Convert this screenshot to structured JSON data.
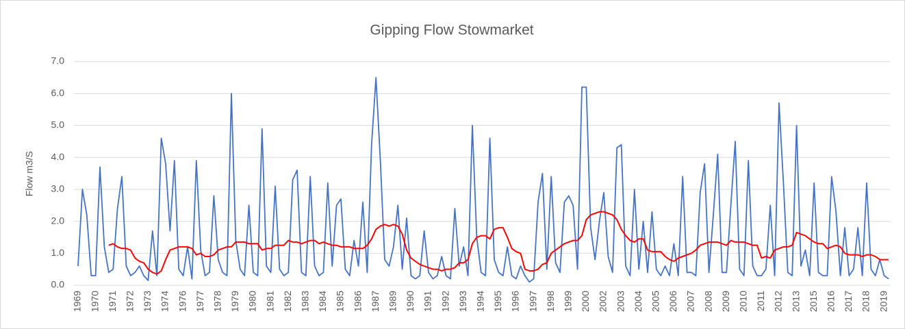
{
  "chart_data": {
    "type": "line",
    "title": "Gipping Flow Stowmarket",
    "y_label": "Flow m3/S",
    "categories": [
      "1969",
      null,
      null,
      null,
      "1970",
      null,
      null,
      null,
      "1971",
      null,
      null,
      null,
      "1972",
      null,
      null,
      null,
      "1973",
      null,
      null,
      null,
      "1974",
      null,
      null,
      null,
      "1976",
      null,
      null,
      null,
      "1977",
      null,
      null,
      null,
      "1978",
      null,
      null,
      null,
      "1979",
      null,
      null,
      null,
      "1980",
      null,
      null,
      null,
      "1981",
      null,
      null,
      null,
      "1982",
      null,
      null,
      null,
      "1983",
      null,
      null,
      null,
      "1984",
      null,
      null,
      null,
      "1985",
      null,
      null,
      null,
      "1986",
      null,
      null,
      null,
      "1987",
      null,
      null,
      null,
      "1989",
      null,
      null,
      null,
      "1990",
      null,
      null,
      null,
      "1991",
      null,
      null,
      null,
      "1992",
      null,
      null,
      null,
      "1993",
      null,
      null,
      null,
      "1994",
      null,
      null,
      null,
      "1995",
      null,
      null,
      null,
      "1996",
      null,
      null,
      null,
      "1997",
      null,
      null,
      null,
      "1998",
      null,
      null,
      null,
      "1999",
      null,
      null,
      null,
      "2000",
      null,
      null,
      null,
      "2002",
      null,
      null,
      null,
      "2003",
      null,
      null,
      null,
      "2004",
      null,
      null,
      null,
      "2005",
      null,
      null,
      null,
      "2006",
      null,
      null,
      null,
      "2007",
      null,
      null,
      null,
      "2008",
      null,
      null,
      null,
      "2009",
      null,
      null,
      null,
      "2010",
      null,
      null,
      null,
      "2011",
      null,
      null,
      null,
      "2012",
      null,
      null,
      null,
      "2013",
      null,
      null,
      null,
      "2015",
      null,
      null,
      null,
      "2016",
      null,
      null,
      null,
      "2017",
      null,
      null,
      null,
      "2018",
      null,
      null,
      null,
      "2019",
      null
    ],
    "series": [
      {
        "color": "#4472c4",
        "values": [
          0.6,
          3.0,
          2.2,
          0.3,
          0.3,
          3.7,
          1.2,
          0.4,
          0.5,
          2.4,
          3.4,
          0.6,
          0.3,
          0.4,
          0.6,
          0.3,
          0.15,
          1.7,
          0.3,
          4.6,
          3.8,
          1.7,
          3.9,
          0.5,
          0.3,
          1.2,
          0.2,
          3.9,
          1.1,
          0.3,
          0.4,
          2.8,
          0.8,
          0.4,
          0.3,
          6.0,
          1.4,
          0.5,
          0.3,
          2.5,
          0.4,
          0.3,
          4.9,
          0.6,
          0.4,
          3.1,
          0.5,
          0.3,
          0.4,
          3.3,
          3.6,
          0.4,
          0.3,
          3.4,
          0.6,
          0.3,
          0.4,
          3.2,
          0.6,
          2.5,
          2.7,
          0.5,
          0.3,
          1.4,
          0.6,
          2.6,
          0.4,
          4.4,
          6.5,
          3.9,
          0.8,
          0.6,
          1.2,
          2.5,
          0.5,
          2.1,
          0.3,
          0.2,
          0.3,
          1.7,
          0.4,
          0.2,
          0.3,
          0.9,
          0.3,
          0.2,
          2.4,
          0.6,
          1.2,
          0.3,
          5.0,
          1.5,
          0.4,
          0.3,
          4.6,
          0.8,
          0.4,
          0.3,
          1.2,
          0.3,
          0.2,
          0.6,
          0.3,
          0.1,
          0.2,
          2.6,
          3.5,
          0.5,
          3.4,
          0.7,
          0.4,
          2.6,
          2.8,
          2.5,
          0.5,
          6.2,
          6.2,
          1.8,
          0.8,
          2.0,
          2.9,
          0.9,
          0.4,
          4.3,
          4.4,
          0.6,
          0.3,
          3.0,
          0.5,
          2.0,
          0.4,
          2.3,
          0.5,
          0.3,
          0.6,
          0.3,
          1.3,
          0.3,
          3.4,
          0.4,
          0.4,
          0.3,
          2.9,
          3.8,
          0.4,
          2.2,
          4.1,
          0.4,
          0.4,
          2.5,
          4.5,
          0.5,
          0.3,
          3.9,
          0.6,
          0.3,
          0.3,
          0.5,
          2.5,
          0.3,
          5.7,
          3.2,
          0.4,
          0.3,
          5.0,
          0.6,
          1.1,
          0.3,
          3.2,
          0.4,
          0.3,
          0.3,
          3.4,
          2.3,
          0.3,
          1.8,
          0.3,
          0.5,
          1.8,
          0.3,
          3.2,
          0.5,
          0.3,
          0.8,
          0.3,
          0.2
        ]
      },
      {
        "color": "#ff0000",
        "values": [
          null,
          null,
          null,
          null,
          null,
          null,
          null,
          1.25,
          1.3,
          1.2,
          1.15,
          1.15,
          1.1,
          0.85,
          0.75,
          0.7,
          0.5,
          0.4,
          0.35,
          0.45,
          0.8,
          1.1,
          1.15,
          1.2,
          1.2,
          1.2,
          1.15,
          0.95,
          1.0,
          0.9,
          0.9,
          0.95,
          1.1,
          1.15,
          1.2,
          1.2,
          1.35,
          1.35,
          1.35,
          1.3,
          1.3,
          1.3,
          1.1,
          1.15,
          1.15,
          1.25,
          1.25,
          1.25,
          1.4,
          1.35,
          1.35,
          1.3,
          1.35,
          1.4,
          1.4,
          1.3,
          1.35,
          1.3,
          1.25,
          1.25,
          1.2,
          1.2,
          1.2,
          1.15,
          1.15,
          1.15,
          1.25,
          1.45,
          1.75,
          1.85,
          1.9,
          1.85,
          1.9,
          1.85,
          1.6,
          1.1,
          0.85,
          0.75,
          0.65,
          0.6,
          0.55,
          0.5,
          0.5,
          0.45,
          0.5,
          0.5,
          0.55,
          0.7,
          0.7,
          0.8,
          1.3,
          1.5,
          1.55,
          1.55,
          1.45,
          1.75,
          1.8,
          1.8,
          1.5,
          1.15,
          1.05,
          1.0,
          0.5,
          0.45,
          0.45,
          0.5,
          0.65,
          0.7,
          1.0,
          1.1,
          1.2,
          1.3,
          1.35,
          1.4,
          1.4,
          1.55,
          2.05,
          2.2,
          2.25,
          2.3,
          2.3,
          2.25,
          2.2,
          2.05,
          1.75,
          1.55,
          1.4,
          1.35,
          1.45,
          1.45,
          1.1,
          1.05,
          1.05,
          1.05,
          0.9,
          0.8,
          0.75,
          0.85,
          0.9,
          0.95,
          1.0,
          1.1,
          1.25,
          1.3,
          1.35,
          1.35,
          1.35,
          1.3,
          1.25,
          1.4,
          1.35,
          1.35,
          1.35,
          1.3,
          1.25,
          1.25,
          0.85,
          0.9,
          0.85,
          1.1,
          1.15,
          1.2,
          1.2,
          1.25,
          1.65,
          1.6,
          1.55,
          1.45,
          1.35,
          1.3,
          1.3,
          1.15,
          1.2,
          1.25,
          1.2,
          1.0,
          0.95,
          0.95,
          0.95,
          0.9,
          0.95,
          0.95,
          0.9,
          0.8,
          0.8,
          0.8
        ]
      }
    ],
    "ylim": [
      0,
      7
    ],
    "yticks": [
      {
        "value": 0,
        "label": "0.0"
      },
      {
        "value": 1,
        "label": "1.0"
      },
      {
        "value": 2,
        "label": "2.0"
      },
      {
        "value": 3,
        "label": "3.0"
      },
      {
        "value": 4,
        "label": "4.0"
      },
      {
        "value": 5,
        "label": "5.0"
      },
      {
        "value": 6,
        "label": "6.0"
      },
      {
        "value": 7,
        "label": "7.0"
      }
    ],
    "grid": true
  }
}
